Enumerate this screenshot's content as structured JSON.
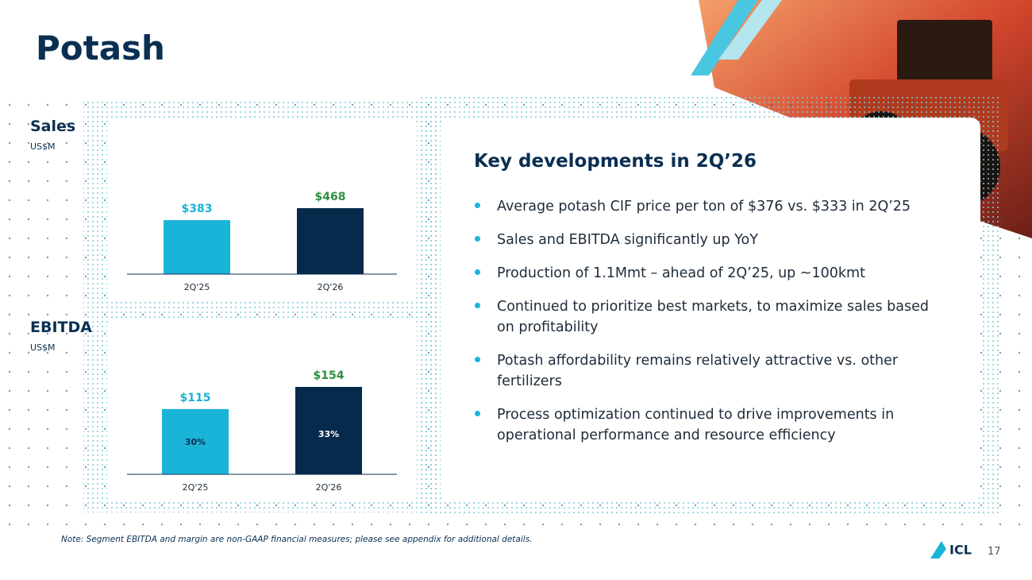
{
  "title": "Potash",
  "chart_data": [
    {
      "type": "bar",
      "title": "Sales",
      "subtitle": "US$M",
      "categories": [
        "2Q'25",
        "2Q'26"
      ],
      "values": [
        383,
        468
      ],
      "value_labels": [
        "$383",
        "$468"
      ],
      "colors": [
        "#1ab4d8",
        "#062a4b"
      ],
      "label_colors": [
        "#1ab4d8",
        "#2f8f3f"
      ]
    },
    {
      "type": "bar",
      "title": "EBITDA",
      "subtitle": "US$M",
      "categories": [
        "2Q'25",
        "2Q'26"
      ],
      "values": [
        115,
        154
      ],
      "value_labels": [
        "$115",
        "$154"
      ],
      "margins": [
        30,
        33
      ],
      "margin_labels": [
        "30%",
        "33%"
      ],
      "colors": [
        "#1ab4d8",
        "#062a4b"
      ],
      "label_colors": [
        "#1ab4d8",
        "#2f8f3f"
      ]
    }
  ],
  "developments": {
    "heading": "Key developments in 2Q’26",
    "bullets": [
      "Average potash CIF price per ton of $376 vs. $333 in 2Q’25",
      "Sales and EBITDA significantly up YoY",
      "Production of 1.1Mmt – ahead of 2Q’25, up ~100kmt",
      "Continued to prioritize best markets, to maximize sales based on profitability",
      "Potash affordability remains relatively attractive vs. other fertilizers",
      "Process optimization continued to drive improvements in operational performance and resource efficiency"
    ]
  },
  "note": "Note: Segment EBITDA and margin are non-GAAP financial measures; please see appendix for additional details.",
  "logo": "ICL",
  "page_number": "17"
}
